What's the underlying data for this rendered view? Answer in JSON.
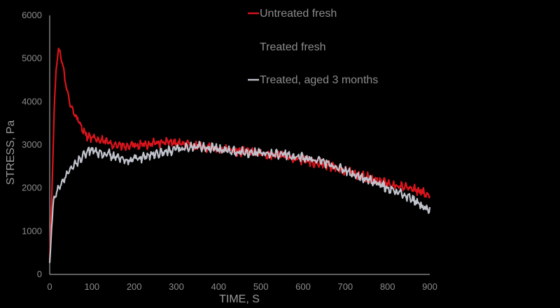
{
  "chart_data": {
    "type": "line",
    "xlabel": "TIME, S",
    "ylabel": "STRESS, Pa",
    "xlim": [
      0,
      900
    ],
    "ylim": [
      0,
      6000
    ],
    "x_ticks": [
      "0",
      "100",
      "200",
      "300",
      "400",
      "500",
      "600",
      "700",
      "800",
      "900"
    ],
    "y_ticks": [
      "0",
      "1000",
      "2000",
      "3000",
      "4000",
      "5000",
      "6000"
    ],
    "grid": false,
    "legend_position": "top-right",
    "series": [
      {
        "name": "Untreated fresh",
        "color": "#d9141c",
        "points": [
          [
            0,
            300
          ],
          [
            5,
            1800
          ],
          [
            10,
            3600
          ],
          [
            15,
            4700
          ],
          [
            20,
            5200
          ],
          [
            25,
            5100
          ],
          [
            30,
            4900
          ],
          [
            35,
            4600
          ],
          [
            40,
            4300
          ],
          [
            50,
            3900
          ],
          [
            60,
            3700
          ],
          [
            70,
            3500
          ],
          [
            80,
            3350
          ],
          [
            90,
            3200
          ],
          [
            100,
            3150
          ],
          [
            120,
            3100
          ],
          [
            140,
            3050
          ],
          [
            160,
            3000
          ],
          [
            180,
            2950
          ],
          [
            200,
            2980
          ],
          [
            220,
            3000
          ],
          [
            250,
            3050
          ],
          [
            280,
            3050
          ],
          [
            300,
            3050
          ],
          [
            330,
            3000
          ],
          [
            360,
            2950
          ],
          [
            400,
            2900
          ],
          [
            450,
            2850
          ],
          [
            500,
            2800
          ],
          [
            550,
            2750
          ],
          [
            600,
            2650
          ],
          [
            650,
            2550
          ],
          [
            700,
            2400
          ],
          [
            750,
            2250
          ],
          [
            800,
            2100
          ],
          [
            850,
            2000
          ],
          [
            900,
            1850
          ]
        ]
      },
      {
        "name": "Treated fresh",
        "color": "#000000",
        "points": []
      },
      {
        "name": "Treated, aged 3 months",
        "color": "#c0c2cb",
        "points": [
          [
            0,
            200
          ],
          [
            5,
            1200
          ],
          [
            10,
            1750
          ],
          [
            20,
            2000
          ],
          [
            30,
            2150
          ],
          [
            40,
            2300
          ],
          [
            50,
            2450
          ],
          [
            60,
            2550
          ],
          [
            70,
            2650
          ],
          [
            80,
            2750
          ],
          [
            90,
            2850
          ],
          [
            100,
            2900
          ],
          [
            110,
            2850
          ],
          [
            120,
            2800
          ],
          [
            140,
            2780
          ],
          [
            160,
            2700
          ],
          [
            180,
            2600
          ],
          [
            200,
            2680
          ],
          [
            220,
            2720
          ],
          [
            250,
            2800
          ],
          [
            280,
            2850
          ],
          [
            300,
            2900
          ],
          [
            330,
            2950
          ],
          [
            360,
            2950
          ],
          [
            400,
            2900
          ],
          [
            450,
            2850
          ],
          [
            500,
            2800
          ],
          [
            550,
            2780
          ],
          [
            600,
            2700
          ],
          [
            650,
            2600
          ],
          [
            700,
            2400
          ],
          [
            750,
            2200
          ],
          [
            800,
            2000
          ],
          [
            850,
            1800
          ],
          [
            900,
            1450
          ]
        ]
      }
    ]
  }
}
